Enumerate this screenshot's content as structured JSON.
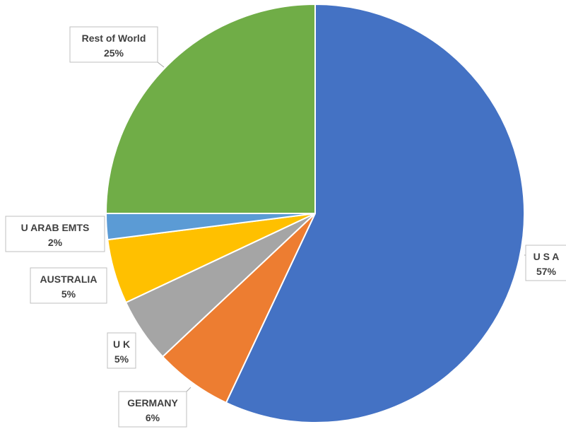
{
  "chart_data": {
    "type": "pie",
    "title": "",
    "start_angle_deg": 0,
    "direction": "clockwise",
    "slices": [
      {
        "label": "U S A",
        "percent_label": "57%",
        "value": 57,
        "color": "#4472c4"
      },
      {
        "label": "GERMANY",
        "percent_label": "6%",
        "value": 6,
        "color": "#ed7d31"
      },
      {
        "label": "U K",
        "percent_label": "5%",
        "value": 5,
        "color": "#a5a5a5"
      },
      {
        "label": "AUSTRALIA",
        "percent_label": "5%",
        "value": 5,
        "color": "#ffc000"
      },
      {
        "label": "U ARAB EMTS",
        "percent_label": "2%",
        "value": 2,
        "color": "#5b9bd5"
      },
      {
        "label": "Rest of World",
        "percent_label": "25%",
        "value": 25,
        "color": "#70ad47"
      }
    ]
  }
}
